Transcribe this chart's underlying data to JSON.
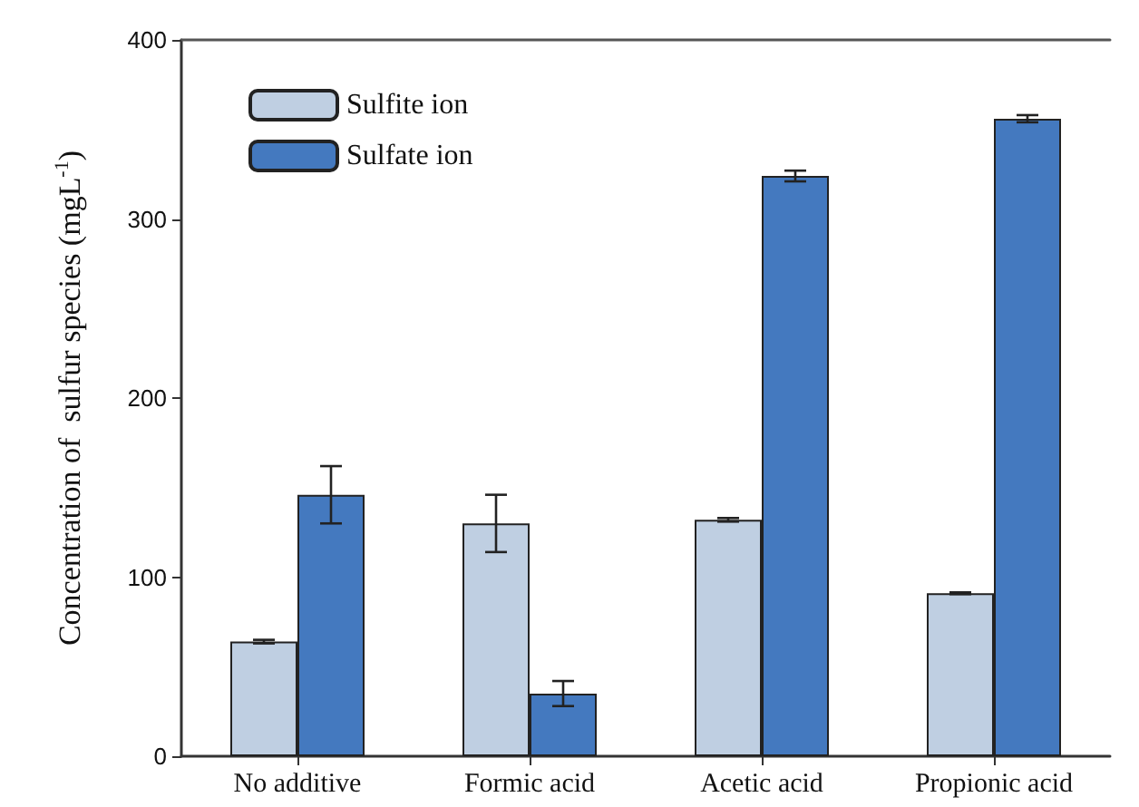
{
  "chart_data": {
    "type": "bar",
    "ylabel": "Concentration of  sulfur species (mgL$^{-1}$)",
    "categories": [
      "No additive",
      "Formic acid",
      "Acetic acid",
      "Propionic acid"
    ],
    "series": [
      {
        "name": "Sulfite ion",
        "color": "#bfcfe2",
        "values": [
          64,
          130,
          132,
          91
        ],
        "errors": [
          1,
          16,
          1,
          0.5
        ]
      },
      {
        "name": "Sulfate ion",
        "color": "#4479bf",
        "values": [
          146,
          35,
          324,
          356
        ],
        "errors": [
          16,
          7,
          3,
          2
        ]
      }
    ],
    "ylim": [
      0,
      400
    ],
    "yticks": [
      0,
      100,
      200,
      300,
      400
    ],
    "grid": false,
    "legend": "top left"
  }
}
